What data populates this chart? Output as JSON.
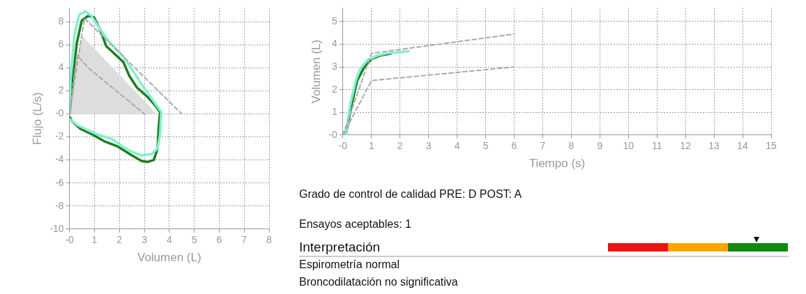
{
  "chart_data": [
    {
      "type": "line",
      "xlabel": "Volumen (L)",
      "ylabel": "Flujo (L/s)",
      "xlim": [
        0,
        8
      ],
      "ylim": [
        -10,
        9.2
      ],
      "xticks": [
        {
          "value": 0,
          "label": "-0"
        },
        1,
        2,
        3,
        4,
        5,
        6,
        7,
        8
      ],
      "yticks": [
        -10,
        -8,
        -6,
        -4,
        -2,
        {
          "value": 0,
          "label": "-0"
        },
        2,
        4,
        6,
        8
      ],
      "grid": true,
      "marker": "none",
      "series": [
        {
          "type": "area",
          "color": "#dddddd",
          "x": [
            0,
            0.1,
            0.5,
            3.5,
            0
          ],
          "values": [
            0,
            3,
            6.8,
            0,
            0
          ]
        },
        {
          "color": "#aaaaaa",
          "line_style": "dashed",
          "x": [
            0,
            0.6,
            4.5
          ],
          "values": [
            0,
            8.3,
            0
          ]
        },
        {
          "color": "#aaaaaa",
          "line_style": "dashed",
          "x": [
            0,
            0.3,
            0.75,
            3
          ],
          "values": [
            0,
            5.1,
            4,
            0
          ]
        },
        {
          "color": "#7ff2cf",
          "x": [
            0,
            0.05,
            0.2,
            0.39,
            0.64,
            0.88,
            1.18,
            1.57,
            2.11,
            2.5,
            2.85,
            3.29,
            3.68,
            3.63,
            3.53,
            3.29,
            2.9,
            2.4,
            1.72,
            1.03,
            0.34,
            0
          ],
          "values": [
            0,
            3.3,
            6.9,
            8.6,
            8.9,
            8.5,
            7.5,
            6.3,
            5.1,
            3.9,
            2.7,
            1.35,
            0.16,
            -1.8,
            -3.0,
            -3.5,
            -3.6,
            -3.2,
            -2.2,
            -1.7,
            -1.0,
            -0.44
          ]
        },
        {
          "color": "#1e7d1e",
          "x": [
            0,
            0.15,
            0.29,
            0.49,
            0.74,
            0.98,
            1.23,
            1.47,
            1.91,
            2.16,
            2.4,
            2.7,
            3.14,
            3.43,
            3.63,
            3.58,
            3.53,
            3.38,
            3.14,
            2.9,
            2.5,
            1.91,
            1.42,
            0.93,
            0.44,
            0.1,
            0.02
          ],
          "values": [
            0,
            3.3,
            6.1,
            8.1,
            8.5,
            8.4,
            7.3,
            5.9,
            5.0,
            4.5,
            3.3,
            2.3,
            1.45,
            0.75,
            0.16,
            -1.0,
            -3.0,
            -4.0,
            -4.17,
            -4.1,
            -3.6,
            -2.8,
            -2.4,
            -1.8,
            -1.3,
            -0.63,
            -0.3
          ]
        }
      ]
    },
    {
      "type": "line",
      "xlabel": "Tiempo (s)",
      "ylabel": "Volumen (L)",
      "xlim": [
        0,
        15
      ],
      "ylim": [
        0,
        5.6
      ],
      "xticks": [
        {
          "value": 0,
          "label": "-0"
        },
        1,
        2,
        3,
        4,
        5,
        6,
        7,
        8,
        9,
        10,
        11,
        12,
        13,
        14,
        15
      ],
      "yticks": [
        {
          "value": 0,
          "label": "-0"
        },
        1,
        2,
        3,
        4,
        5
      ],
      "grid": true,
      "marker": "none",
      "series": [
        {
          "color": "#aaaaaa",
          "line_style": "dashed",
          "x": [
            0,
            1,
            6
          ],
          "values": [
            0,
            3.6,
            4.45
          ]
        },
        {
          "color": "#aaaaaa",
          "line_style": "dashed",
          "x": [
            0,
            1,
            6
          ],
          "values": [
            0,
            2.4,
            3.0
          ]
        },
        {
          "color": "#7ff2cf",
          "x": [
            0.1,
            0.25,
            0.45,
            0.6,
            0.85,
            1.2,
            1.6,
            2,
            2.3
          ],
          "values": [
            0,
            1.3,
            2.4,
            2.9,
            3.3,
            3.5,
            3.62,
            3.65,
            3.7
          ]
        },
        {
          "color": "#1e7d1e",
          "x": [
            0.1,
            0.3,
            0.5,
            0.75,
            1,
            1.3,
            1.7
          ],
          "values": [
            0,
            1.3,
            2.4,
            3.0,
            3.35,
            3.5,
            3.6
          ]
        }
      ]
    },
    {
      "type": "other",
      "title": "Interpretación",
      "annotations": [
        "Grado de control de calidad PRE: D POST: A",
        "Ensayos aceptables: 1",
        "Espirometría normal",
        "Broncodilatación no significativa"
      ]
    }
  ]
}
